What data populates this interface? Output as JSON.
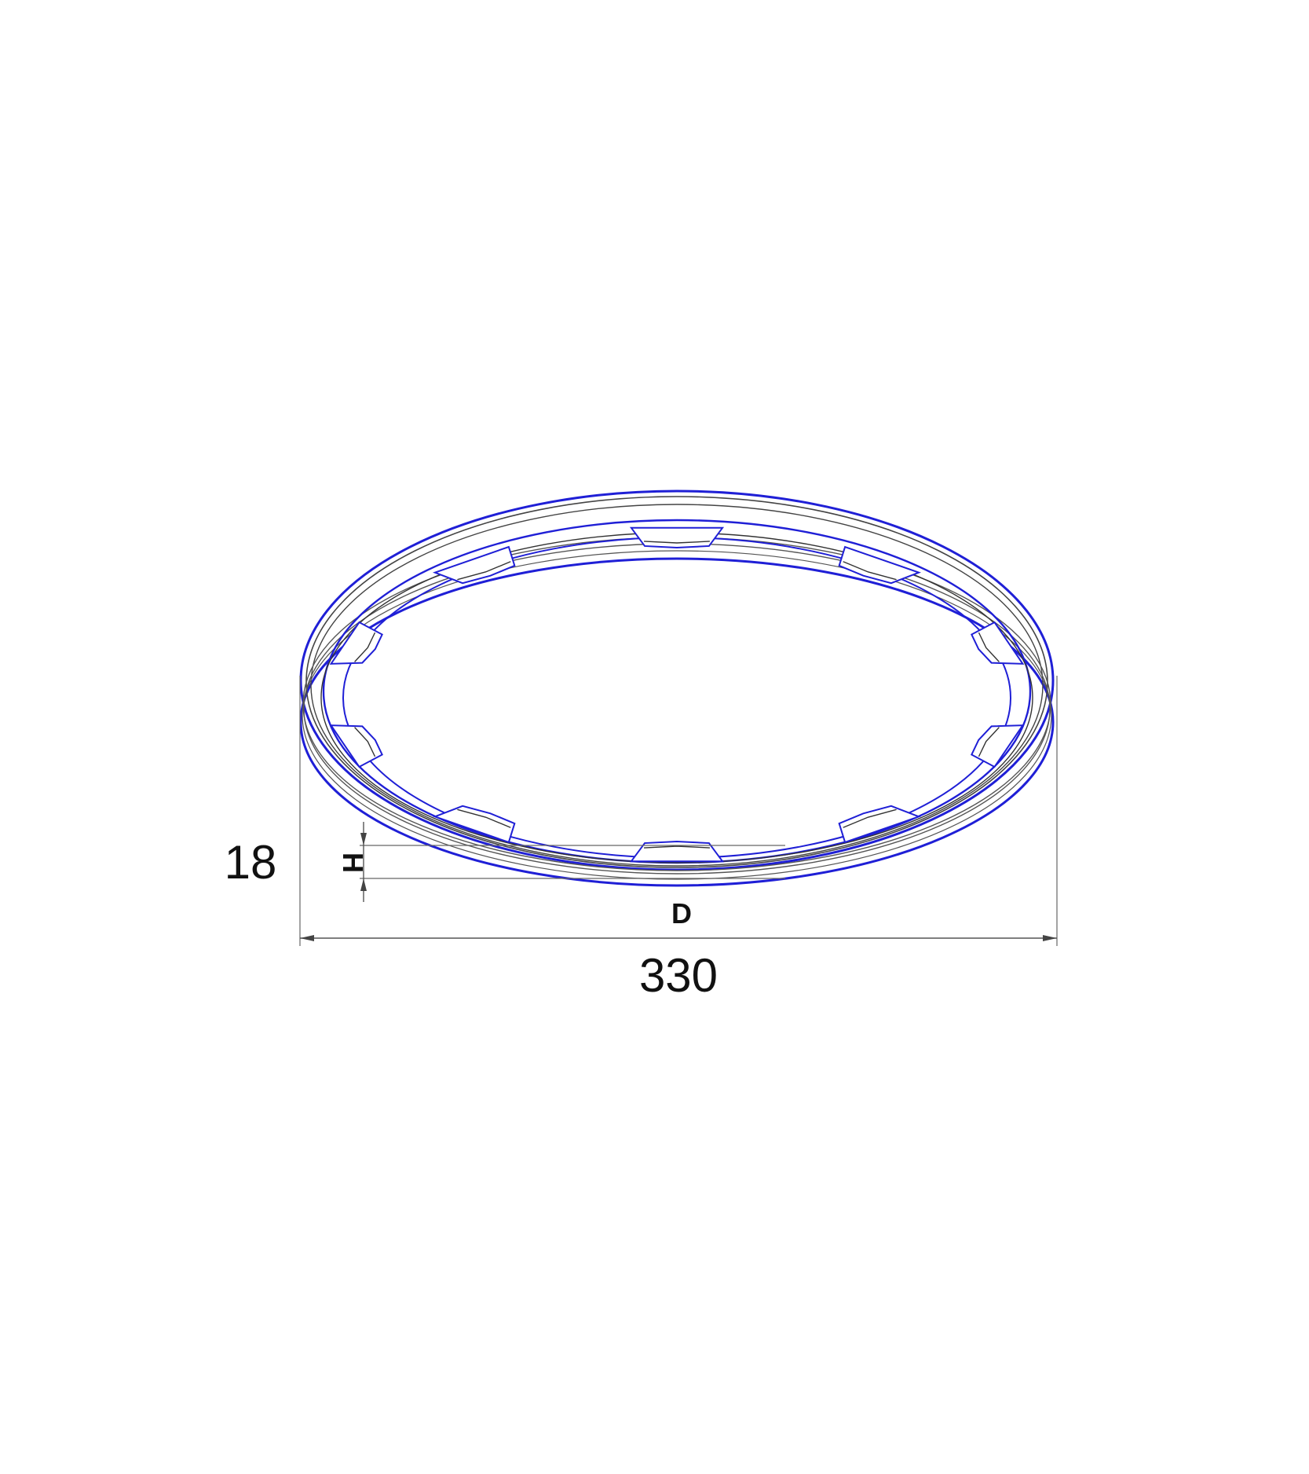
{
  "drawing": {
    "colors": {
      "outline": "#1f1fd6",
      "linework": "#333333",
      "dimension": "#555555",
      "background": "#ffffff"
    },
    "ring": {
      "tab_count": 10
    },
    "dimensions": {
      "height": {
        "letter": "H",
        "value": "18"
      },
      "diameter": {
        "letter": "D",
        "value": "330"
      }
    }
  }
}
